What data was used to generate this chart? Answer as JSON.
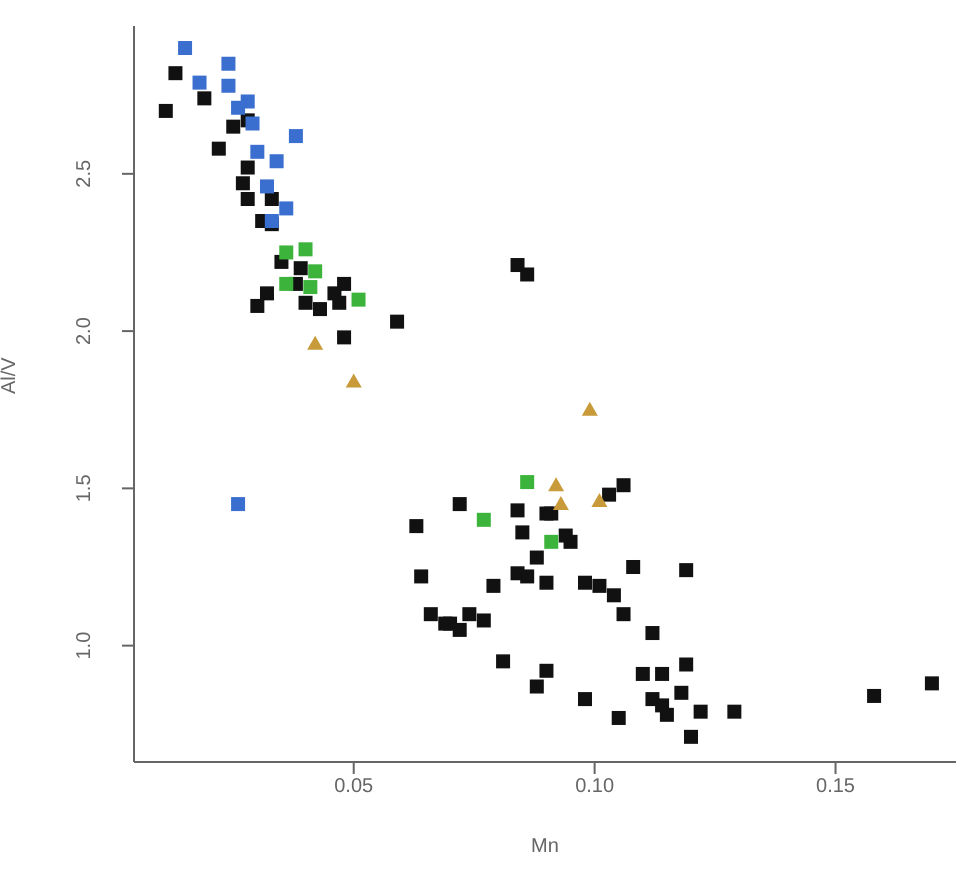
{
  "chart_data": {
    "type": "scatter",
    "xlabel": "Mn",
    "ylabel": "Al/V",
    "xlim": [
      0.0044,
      0.175
    ],
    "ylim": [
      0.63,
      2.97
    ],
    "xticks": [
      {
        "value": 0.05,
        "label": "0.05"
      },
      {
        "value": 0.1,
        "label": "0.10"
      },
      {
        "value": 0.15,
        "label": "0.15"
      }
    ],
    "yticks": [
      {
        "value": 1,
        "label": "1.0"
      },
      {
        "value": 1.5,
        "label": "1.5"
      },
      {
        "value": 2,
        "label": "2.0"
      },
      {
        "value": 2.5,
        "label": "2.5"
      }
    ],
    "grid": false,
    "legend": false,
    "marker": "square",
    "series": [
      {
        "color": "#111111",
        "x": [
          0.013,
          0.011,
          0.019,
          0.025,
          0.028,
          0.022,
          0.028,
          0.027,
          0.028,
          0.033,
          0.031,
          0.033,
          0.035,
          0.039,
          0.038,
          0.032,
          0.03,
          0.04,
          0.043,
          0.047,
          0.048,
          0.046,
          0.059,
          0.048,
          0.084,
          0.086,
          0.072,
          0.084,
          0.09,
          0.091,
          0.085,
          0.094,
          0.095,
          0.088,
          0.106,
          0.103,
          0.084,
          0.086,
          0.09,
          0.079,
          0.098,
          0.101,
          0.104,
          0.108,
          0.119,
          0.106,
          0.074,
          0.077,
          0.07,
          0.112,
          0.081,
          0.09,
          0.088,
          0.098,
          0.105,
          0.11,
          0.114,
          0.119,
          0.118,
          0.112,
          0.114,
          0.115,
          0.122,
          0.129,
          0.12,
          0.158,
          0.17,
          0.063,
          0.064,
          0.066,
          0.069,
          0.072
        ],
        "values": [
          2.82,
          2.7,
          2.74,
          2.65,
          2.67,
          2.58,
          2.52,
          2.47,
          2.42,
          2.42,
          2.35,
          2.34,
          2.22,
          2.2,
          2.15,
          2.12,
          2.08,
          2.09,
          2.07,
          2.09,
          2.15,
          2.12,
          2.03,
          1.98,
          2.21,
          2.18,
          1.45,
          1.43,
          1.42,
          1.42,
          1.36,
          1.35,
          1.33,
          1.28,
          1.51,
          1.48,
          1.23,
          1.22,
          1.2,
          1.19,
          1.2,
          1.19,
          1.16,
          1.25,
          1.24,
          1.1,
          1.1,
          1.08,
          1.07,
          1.04,
          0.95,
          0.92,
          0.87,
          0.83,
          0.77,
          0.91,
          0.91,
          0.94,
          0.85,
          0.83,
          0.81,
          0.78,
          0.79,
          0.79,
          0.71,
          0.84,
          0.88,
          1.38,
          1.22,
          1.1,
          1.07,
          1.05
        ]
      },
      {
        "color": "#3a6fd0",
        "x": [
          0.015,
          null,
          0.024,
          0.018,
          0.024,
          0.028,
          0.026,
          0.029,
          0.038,
          0.03,
          0.034,
          0.032,
          0.036,
          0.033,
          0.026
        ],
        "values": [
          2.9,
          null,
          2.85,
          2.79,
          2.78,
          2.73,
          2.71,
          2.66,
          2.62,
          2.57,
          2.54,
          2.46,
          2.39,
          2.35,
          1.45
        ]
      },
      {
        "color": "#3cb43c",
        "x": [
          0.036,
          0.04,
          0.042,
          0.036,
          0.051,
          0.041,
          0.086,
          0.077,
          0.091
        ],
        "values": [
          2.25,
          2.26,
          2.19,
          2.15,
          2.1,
          2.14,
          1.52,
          1.4,
          1.33
        ]
      },
      {
        "color": "#c89a3a",
        "marker": "triangle",
        "x": [
          0.042,
          0.05,
          0.099,
          0.092,
          0.093,
          0.101
        ],
        "values": [
          1.96,
          1.84,
          1.75,
          1.51,
          1.45,
          1.46
        ]
      }
    ]
  }
}
